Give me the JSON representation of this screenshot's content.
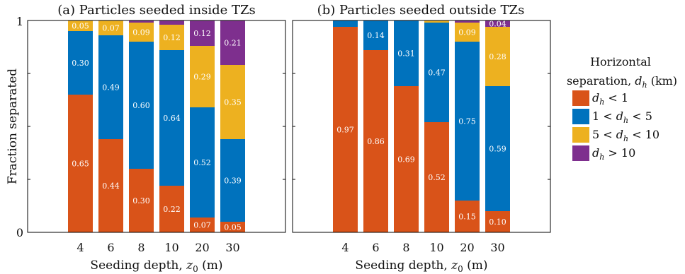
{
  "chart_data": [
    {
      "type": "bar",
      "stacked": true,
      "title": "(a) Particles seeded inside TZs",
      "xlabel": "Seeding depth, z₀ (m)",
      "ylabel": "Fraction separated",
      "ylim": [
        0,
        1
      ],
      "yticks": [
        "0",
        "1"
      ],
      "categories": [
        "4",
        "6",
        "8",
        "10",
        "20",
        "30"
      ],
      "series": [
        {
          "name": "d_h < 1",
          "color": "#d95319",
          "values": [
            0.65,
            0.44,
            0.3,
            0.22,
            0.07,
            0.05
          ]
        },
        {
          "name": "1 < d_h < 5",
          "color": "#0072bd",
          "values": [
            0.3,
            0.49,
            0.6,
            0.64,
            0.52,
            0.39
          ]
        },
        {
          "name": "5 < d_h < 10",
          "color": "#edb120",
          "values": [
            0.05,
            0.07,
            0.09,
            0.12,
            0.29,
            0.35
          ]
        },
        {
          "name": "d_h > 10",
          "color": "#7e2f8e",
          "values": [
            0,
            0,
            0.01,
            0.02,
            0.12,
            0.21
          ]
        }
      ],
      "labels": [
        [
          "0.65",
          "0.44",
          "0.30",
          "0.22",
          "0.07",
          "0.05"
        ],
        [
          "0.30",
          "0.49",
          "0.60",
          "0.64",
          "0.52",
          "0.39"
        ],
        [
          "0.05",
          "0.07",
          "0.09",
          "0.12",
          "0.29",
          "0.35"
        ],
        [
          "",
          "",
          "",
          "",
          "0.12",
          "0.21"
        ]
      ]
    },
    {
      "type": "bar",
      "stacked": true,
      "title": "(b) Particles seeded outside TZs",
      "xlabel": "Seeding depth, z₀ (m)",
      "ylabel": "",
      "ylim": [
        0,
        1
      ],
      "categories": [
        "4",
        "6",
        "8",
        "10",
        "20",
        "30"
      ],
      "series": [
        {
          "name": "d_h < 1",
          "color": "#d95319",
          "values": [
            0.97,
            0.86,
            0.69,
            0.52,
            0.15,
            0.1
          ]
        },
        {
          "name": "1 < d_h < 5",
          "color": "#0072bd",
          "values": [
            0.03,
            0.14,
            0.31,
            0.47,
            0.75,
            0.59
          ]
        },
        {
          "name": "5 < d_h < 10",
          "color": "#edb120",
          "values": [
            0,
            0,
            0,
            0.01,
            0.09,
            0.28
          ]
        },
        {
          "name": "d_h > 10",
          "color": "#7e2f8e",
          "values": [
            0,
            0,
            0,
            0,
            0.01,
            0.04
          ]
        }
      ],
      "labels": [
        [
          "0.97",
          "0.86",
          "0.69",
          "0.52",
          "0.15",
          "0.10"
        ],
        [
          "",
          "0.14",
          "0.31",
          "0.47",
          "0.75",
          "0.59"
        ],
        [
          "",
          "",
          "",
          "",
          "0.09",
          "0.28"
        ],
        [
          "",
          "",
          "",
          "",
          "",
          "0.04"
        ]
      ]
    }
  ],
  "legend": {
    "title_line1": "Horizontal",
    "title_line2": "separation, d_h (km)",
    "placement": "right",
    "items": [
      {
        "label": "d_h < 1",
        "color": "#d95319"
      },
      {
        "label": "1 < d_h < 5",
        "color": "#0072bd"
      },
      {
        "label": "5 < d_h < 10",
        "color": "#edb120"
      },
      {
        "label": "d_h > 10",
        "color": "#7e2f8e"
      }
    ]
  }
}
